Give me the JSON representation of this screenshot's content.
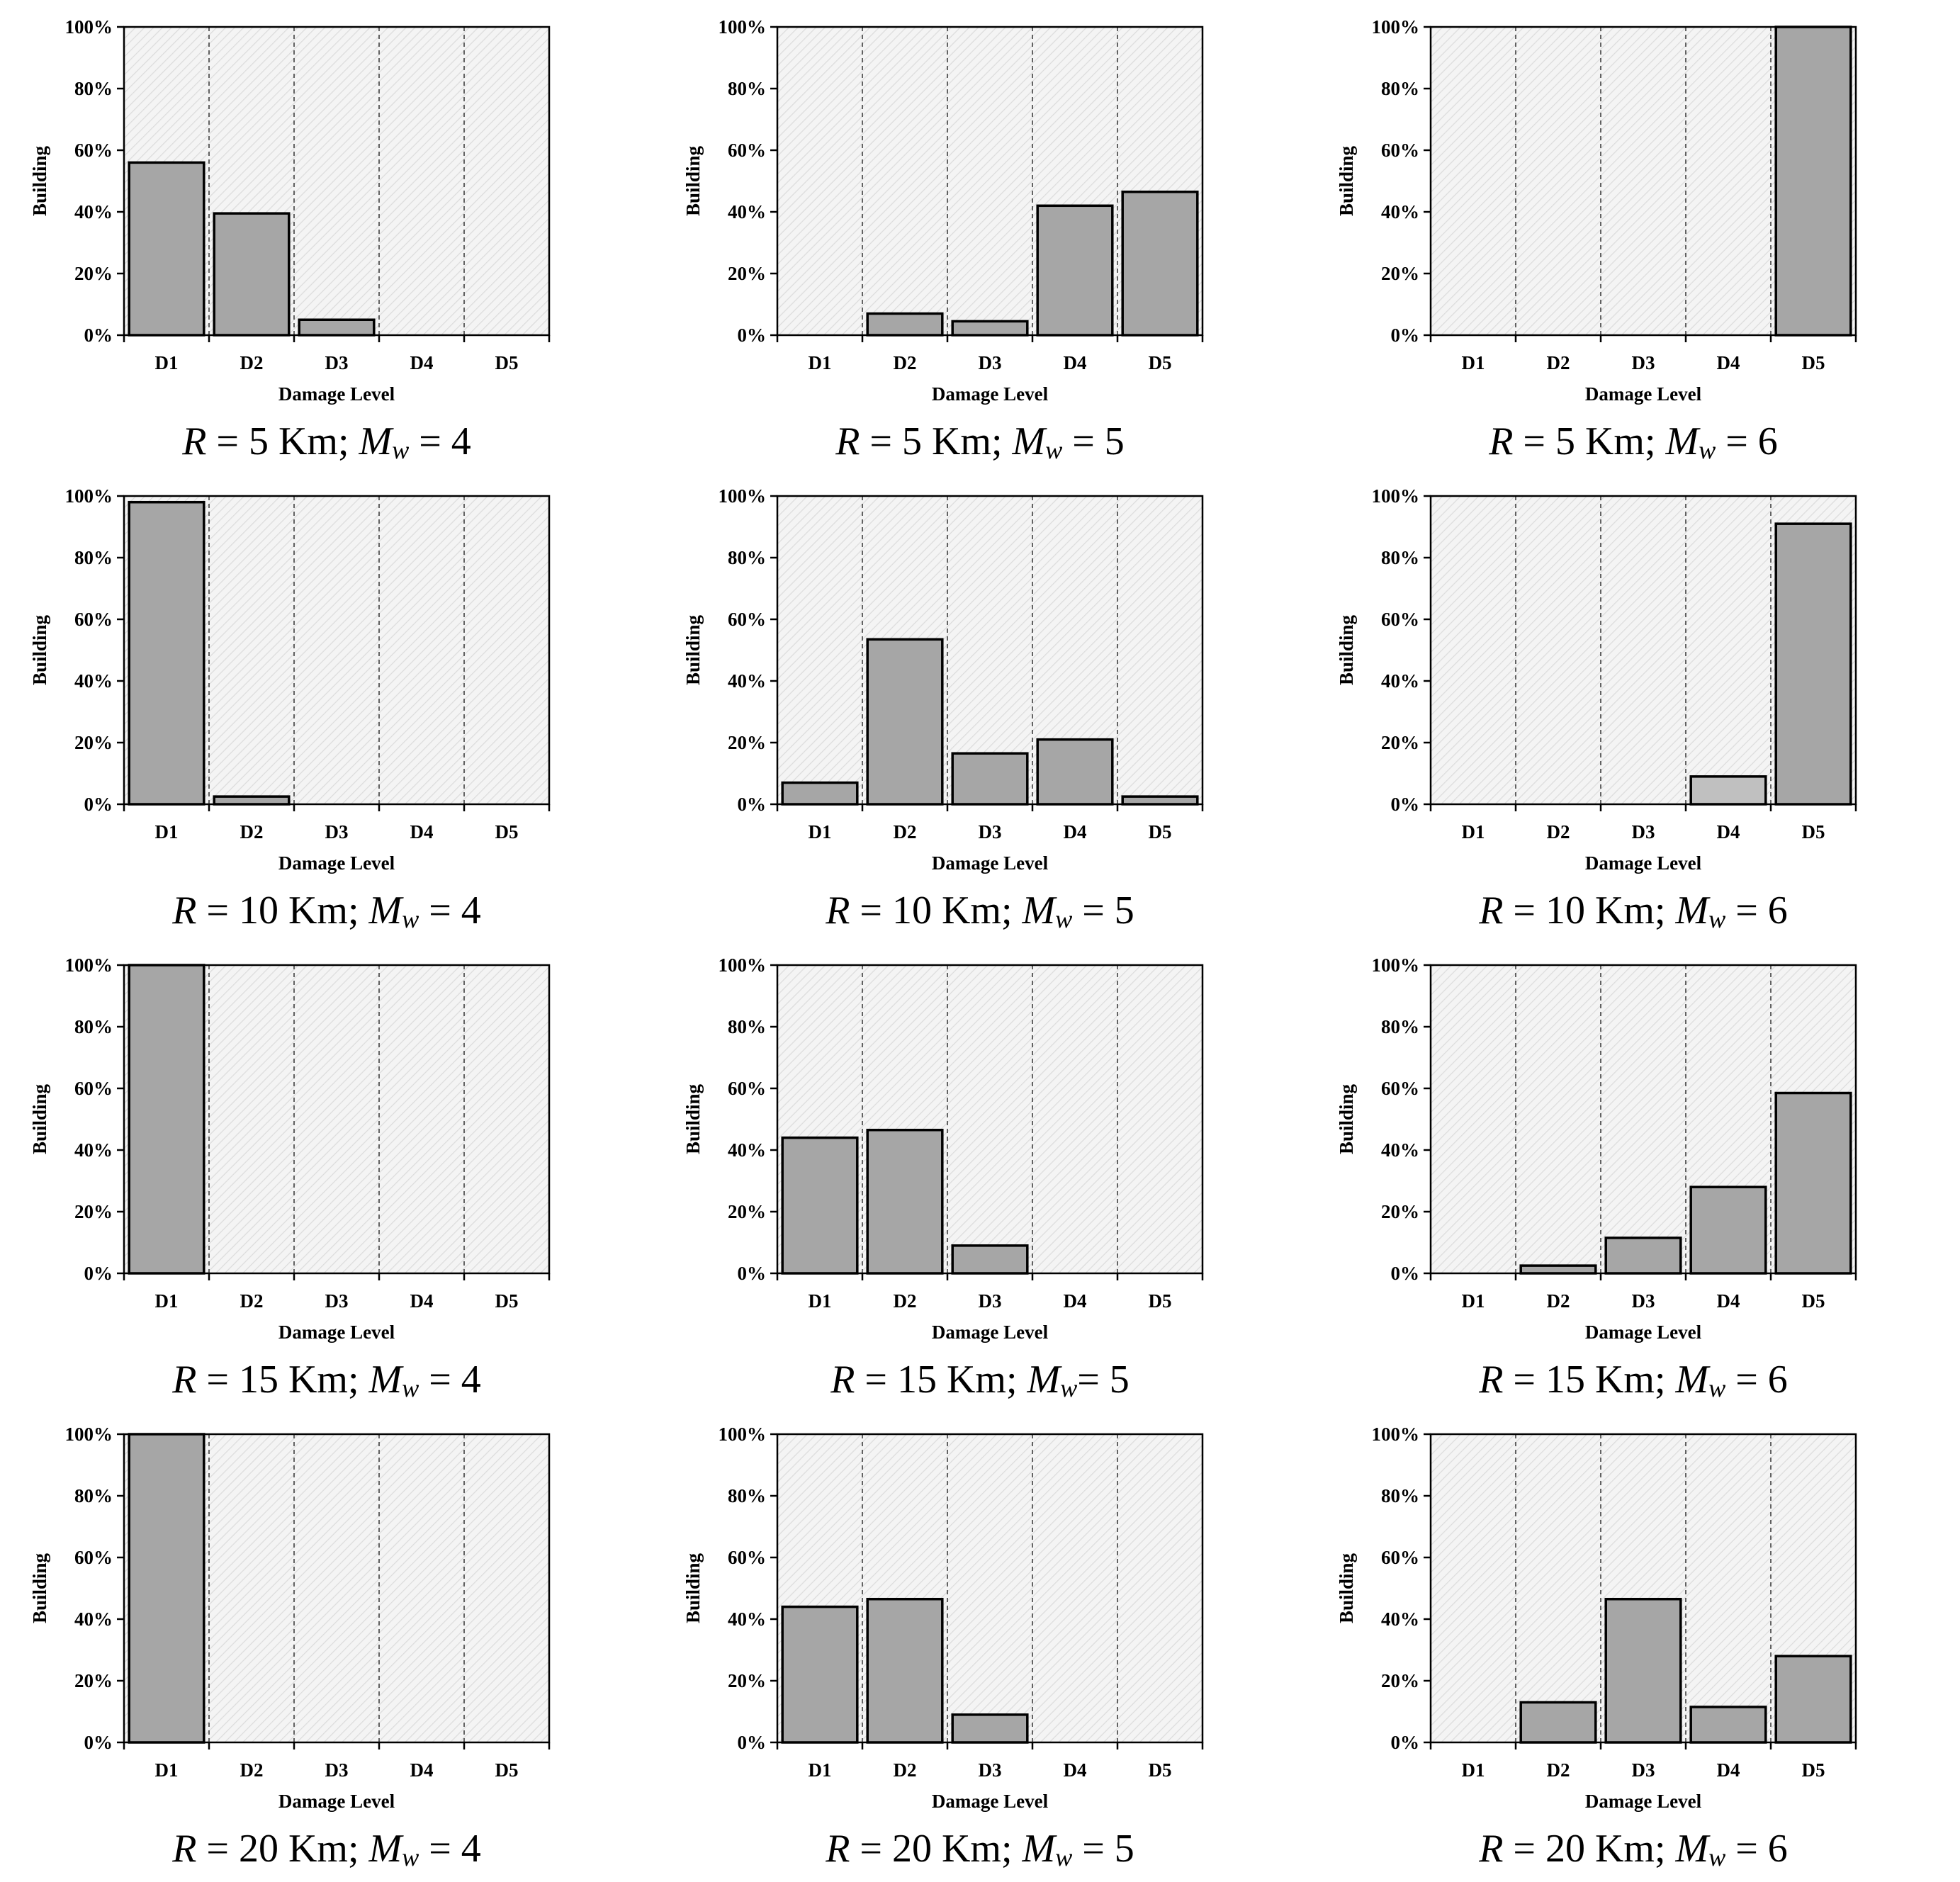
{
  "chart_data": [
    {
      "type": "bar",
      "title": "",
      "xlabel": "Damage Level",
      "ylabel": "Building",
      "ylim": [
        0,
        100
      ],
      "categories": [
        "D1",
        "D2",
        "D3",
        "D4",
        "D5"
      ],
      "values": [
        56,
        39.5,
        5,
        0,
        0
      ],
      "yticks": [
        "0%",
        "20%",
        "40%",
        "60%",
        "80%",
        "100%"
      ],
      "caption": {
        "r_label": "R",
        "r_text": " = 5 Km; ",
        "m_label": "M",
        "m_sub": "w",
        "m_text": " = 4"
      }
    },
    {
      "type": "bar",
      "title": "",
      "xlabel": "Damage Level",
      "ylabel": "Building",
      "ylim": [
        0,
        100
      ],
      "categories": [
        "D1",
        "D2",
        "D3",
        "D4",
        "D5"
      ],
      "values": [
        0,
        7,
        4.5,
        42,
        46.5
      ],
      "yticks": [
        "0%",
        "20%",
        "40%",
        "60%",
        "80%",
        "100%"
      ],
      "caption": {
        "r_label": "R",
        "r_text": " = 5 Km; ",
        "m_label": "M",
        "m_sub": "w",
        "m_text": " = 5"
      }
    },
    {
      "type": "bar",
      "title": "",
      "xlabel": "Damage Level",
      "ylabel": "Building",
      "ylim": [
        0,
        100
      ],
      "categories": [
        "D1",
        "D2",
        "D3",
        "D4",
        "D5"
      ],
      "values": [
        0,
        0,
        0,
        0,
        100
      ],
      "yticks": [
        "0%",
        "20%",
        "40%",
        "60%",
        "80%",
        "100%"
      ],
      "caption": {
        "r_label": "R",
        "r_text": " = 5 Km; ",
        "m_label": "M",
        "m_sub": "w",
        "m_text": " = 6"
      }
    },
    {
      "type": "bar",
      "title": "",
      "xlabel": "Damage Level",
      "ylabel": "Building",
      "ylim": [
        0,
        100
      ],
      "categories": [
        "D1",
        "D2",
        "D3",
        "D4",
        "D5"
      ],
      "values": [
        98,
        2.5,
        0,
        0,
        0
      ],
      "yticks": [
        "0%",
        "20%",
        "40%",
        "60%",
        "80%",
        "100%"
      ],
      "caption": {
        "r_label": "R",
        "r_text": " = 10 Km; ",
        "m_label": "M",
        "m_sub": "w",
        "m_text": " = 4"
      }
    },
    {
      "type": "bar",
      "title": "",
      "xlabel": "Damage Level",
      "ylabel": "Building",
      "ylim": [
        0,
        100
      ],
      "categories": [
        "D1",
        "D2",
        "D3",
        "D4",
        "D5"
      ],
      "values": [
        7,
        53.5,
        16.5,
        21,
        2.5
      ],
      "yticks": [
        "0%",
        "20%",
        "40%",
        "60%",
        "80%",
        "100%"
      ],
      "caption": {
        "r_label": "R",
        "r_text": " = 10 Km; ",
        "m_label": "M",
        "m_sub": "w",
        "m_text": " = 5"
      }
    },
    {
      "type": "bar",
      "title": "",
      "xlabel": "Damage Level",
      "ylabel": "Building",
      "ylim": [
        0,
        100
      ],
      "categories": [
        "D1",
        "D2",
        "D3",
        "D4",
        "D5"
      ],
      "values": [
        0,
        0,
        0,
        9,
        91
      ],
      "yticks": [
        "0%",
        "20%",
        "40%",
        "60%",
        "80%",
        "100%"
      ],
      "highlight_index": 3,
      "caption": {
        "r_label": "R",
        "r_text": " = 10 Km; ",
        "m_label": "M",
        "m_sub": "w",
        "m_text": " = 6"
      }
    },
    {
      "type": "bar",
      "title": "",
      "xlabel": "Damage Level",
      "ylabel": "Building",
      "ylim": [
        0,
        100
      ],
      "categories": [
        "D1",
        "D2",
        "D3",
        "D4",
        "D5"
      ],
      "values": [
        100,
        0,
        0,
        0,
        0
      ],
      "yticks": [
        "0%",
        "20%",
        "40%",
        "60%",
        "80%",
        "100%"
      ],
      "caption": {
        "r_label": "R",
        "r_text": " = 15 Km; ",
        "m_label": "M",
        "m_sub": "w",
        "m_text": " = 4"
      }
    },
    {
      "type": "bar",
      "title": "",
      "xlabel": "Damage Level",
      "ylabel": "Building",
      "ylim": [
        0,
        100
      ],
      "categories": [
        "D1",
        "D2",
        "D3",
        "D4",
        "D5"
      ],
      "values": [
        44,
        46.5,
        9,
        0,
        0
      ],
      "yticks": [
        "0%",
        "20%",
        "40%",
        "60%",
        "80%",
        "100%"
      ],
      "caption": {
        "r_label": "R",
        "r_text": " = 15 Km; ",
        "m_label": "M",
        "m_sub": "w",
        "m_text": "= 5"
      }
    },
    {
      "type": "bar",
      "title": "",
      "xlabel": "Damage Level",
      "ylabel": "Building",
      "ylim": [
        0,
        100
      ],
      "categories": [
        "D1",
        "D2",
        "D3",
        "D4",
        "D5"
      ],
      "values": [
        0,
        2.5,
        11.5,
        28,
        58.5
      ],
      "yticks": [
        "0%",
        "20%",
        "40%",
        "60%",
        "80%",
        "100%"
      ],
      "caption": {
        "r_label": "R",
        "r_text": " = 15 Km; ",
        "m_label": "M",
        "m_sub": "w",
        "m_text": " = 6"
      }
    },
    {
      "type": "bar",
      "title": "",
      "xlabel": "Damage Level",
      "ylabel": "Building",
      "ylim": [
        0,
        100
      ],
      "categories": [
        "D1",
        "D2",
        "D3",
        "D4",
        "D5"
      ],
      "values": [
        100,
        0,
        0,
        0,
        0
      ],
      "yticks": [
        "0%",
        "20%",
        "40%",
        "60%",
        "80%",
        "100%"
      ],
      "caption": {
        "r_label": "R",
        "r_text": " = 20 Km; ",
        "m_label": "M",
        "m_sub": "w",
        "m_text": " = 4"
      }
    },
    {
      "type": "bar",
      "title": "",
      "xlabel": "Damage Level",
      "ylabel": "Building",
      "ylim": [
        0,
        100
      ],
      "categories": [
        "D1",
        "D2",
        "D3",
        "D4",
        "D5"
      ],
      "values": [
        44,
        46.5,
        9,
        0,
        0
      ],
      "yticks": [
        "0%",
        "20%",
        "40%",
        "60%",
        "80%",
        "100%"
      ],
      "caption": {
        "r_label": "R",
        "r_text": " = 20 Km; ",
        "m_label": "M",
        "m_sub": "w",
        "m_text": " = 5"
      }
    },
    {
      "type": "bar",
      "title": "",
      "xlabel": "Damage Level",
      "ylabel": "Building",
      "ylim": [
        0,
        100
      ],
      "categories": [
        "D1",
        "D2",
        "D3",
        "D4",
        "D5"
      ],
      "values": [
        0,
        13,
        46.5,
        11.5,
        28
      ],
      "yticks": [
        "0%",
        "20%",
        "40%",
        "60%",
        "80%",
        "100%"
      ],
      "caption": {
        "r_label": "R",
        "r_text": " = 20 Km; ",
        "m_label": "M",
        "m_sub": "w",
        "m_text": " = 6"
      }
    }
  ],
  "colors": {
    "bar": "#a6a6a6",
    "bar_highlight": "#c0c0c0",
    "plot_bg": "#f4f4f4",
    "hatch": "#dedede",
    "frame": "#000000"
  }
}
